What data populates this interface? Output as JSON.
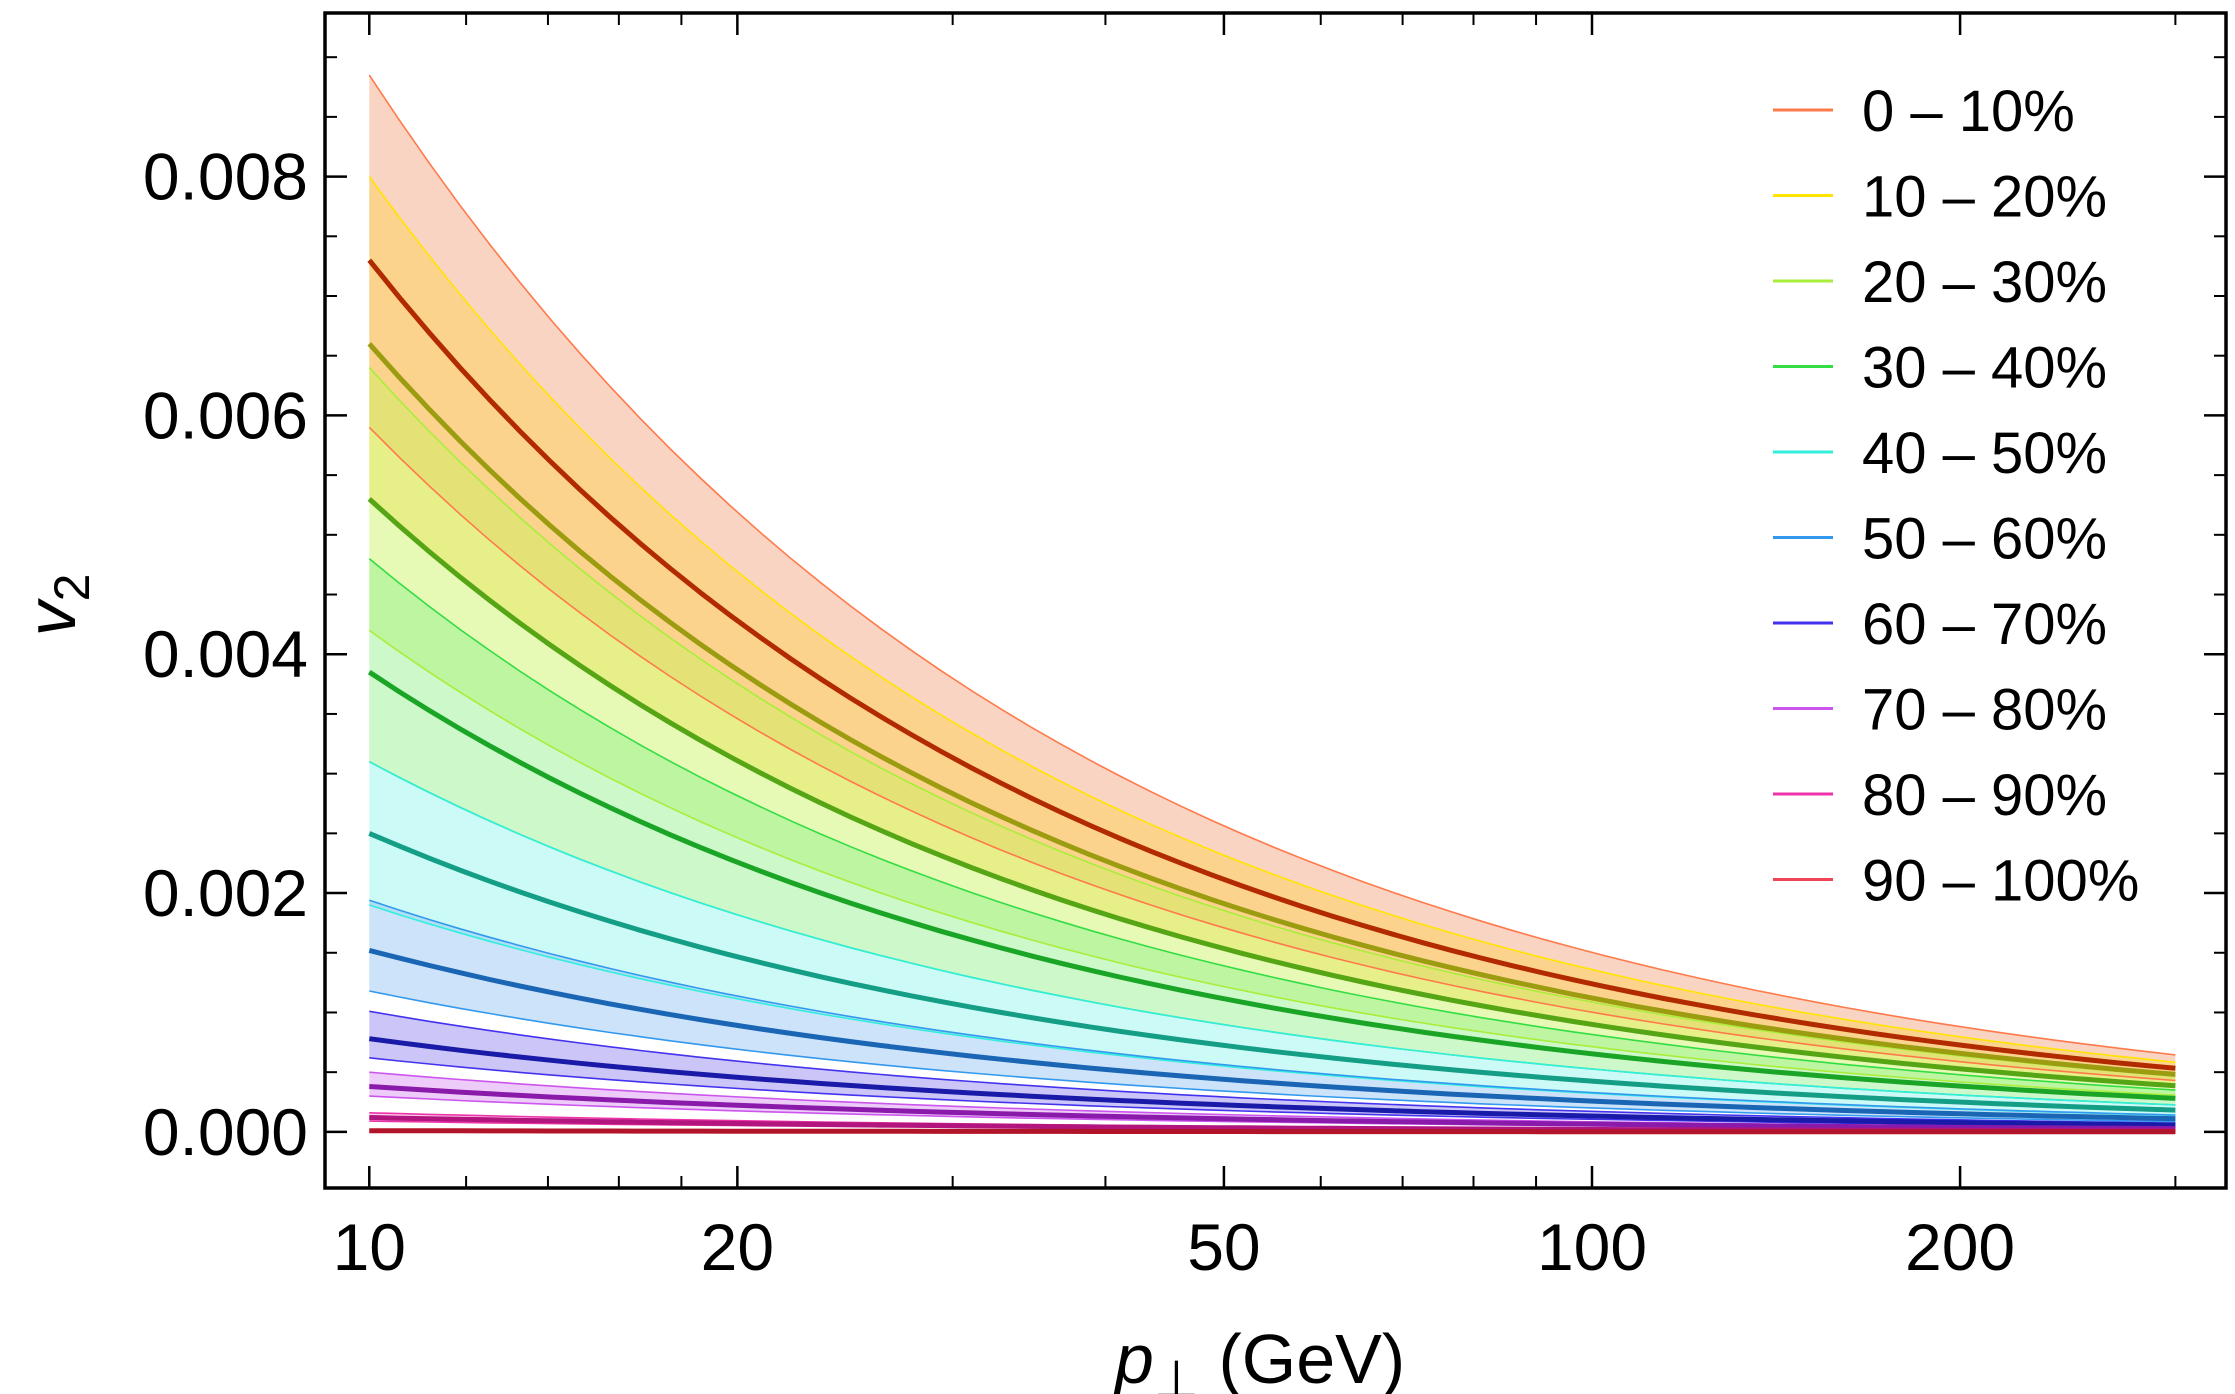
{
  "chart_data": {
    "type": "area",
    "title": "",
    "xlabel": "p⊥ (GeV)",
    "xlabel_main": "p",
    "xlabel_sub": "⊥",
    "xlabel_rest": " (GeV)",
    "ylabel": "v2",
    "ylabel_main": "v",
    "ylabel_sub": "2",
    "xscale": "log",
    "xlim": [
      9.2,
      330
    ],
    "ylim": [
      -0.00047,
      0.00937
    ],
    "x_ticks": [
      10,
      20,
      50,
      100,
      200
    ],
    "x_tick_labels": [
      "10",
      "20",
      "50",
      "100",
      "200"
    ],
    "y_ticks": [
      0,
      0.002,
      0.004,
      0.006,
      0.008
    ],
    "y_tick_labels": [
      "0.000",
      "0.002",
      "0.004",
      "0.006",
      "0.008"
    ],
    "legend_position": "top-right",
    "grid": false,
    "x_range": [
      10,
      300
    ],
    "curve_model": "v2 ≈ amplitude × (10/p⊥)^exponent",
    "exponent": 0.77,
    "series": [
      {
        "name": "0 – 10%",
        "central": 0.0073,
        "lower": 0.0059,
        "upper": 0.00885,
        "line_color": "#b22a00",
        "band_color": "#f5a07a",
        "edge_color": "#ff7a4a"
      },
      {
        "name": "10 – 20%",
        "central": 0.0066,
        "lower": 0.0053,
        "upper": 0.008,
        "line_color": "#9c9c10",
        "band_color": "#ffd24a",
        "edge_color": "#ffe400"
      },
      {
        "name": "20 – 30%",
        "central": 0.0053,
        "lower": 0.0042,
        "upper": 0.0064,
        "line_color": "#55a515",
        "band_color": "#c8f55a",
        "edge_color": "#a8ee3a"
      },
      {
        "name": "30 – 40%",
        "central": 0.00385,
        "lower": 0.0031,
        "upper": 0.0048,
        "line_color": "#1ba526",
        "band_color": "#8ff08a",
        "edge_color": "#33dd44"
      },
      {
        "name": "40 – 50%",
        "central": 0.0025,
        "lower": 0.0019,
        "upper": 0.0031,
        "line_color": "#159e86",
        "band_color": "#8ff5ee",
        "edge_color": "#33eedd"
      },
      {
        "name": "50 – 60%",
        "central": 0.00152,
        "lower": 0.00118,
        "upper": 0.00194,
        "line_color": "#1a66b5",
        "band_color": "#8fc2f5",
        "edge_color": "#3399ee"
      },
      {
        "name": "60 – 70%",
        "central": 0.00078,
        "lower": 0.00062,
        "upper": 0.00101,
        "line_color": "#1a1aa8",
        "band_color": "#8f80f0",
        "edge_color": "#4433ee"
      },
      {
        "name": "70 – 80%",
        "central": 0.00038,
        "lower": 0.0003,
        "upper": 0.0005,
        "line_color": "#8a1aaa",
        "band_color": "#d98ff5",
        "edge_color": "#cc55ee"
      },
      {
        "name": "80 – 90%",
        "central": 0.00012,
        "lower": 9e-05,
        "upper": 0.00016,
        "line_color": "#b2157d",
        "band_color": "#f58fd2",
        "edge_color": "#ee33aa"
      },
      {
        "name": "90 – 100%",
        "central": 1e-05,
        "lower": 0.0,
        "upper": 2e-05,
        "line_color": "#b2152a",
        "band_color": "#f58f9a",
        "edge_color": "#ee4455"
      }
    ]
  }
}
